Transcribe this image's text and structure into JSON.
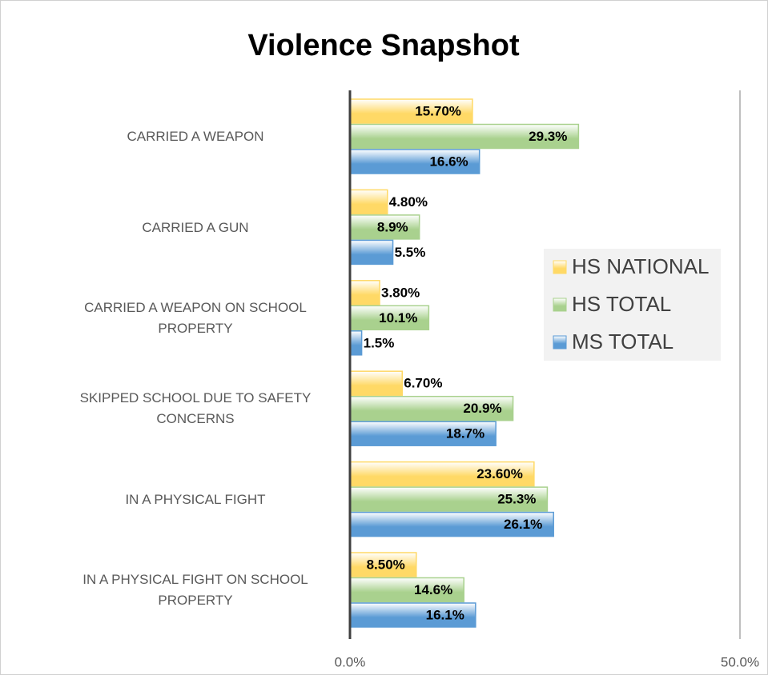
{
  "chart_data": {
    "type": "bar",
    "orientation": "horizontal",
    "title": "Violence Snapshot",
    "categories": [
      "CARRIED A WEAPON",
      "CARRIED A GUN",
      "CARRIED A WEAPON ON SCHOOL PROPERTY",
      "SKIPPED SCHOOL DUE TO SAFETY CONCERNS",
      "IN A PHYSICAL FIGHT",
      "IN A PHYSICAL FIGHT ON SCHOOL PROPERTY"
    ],
    "series": [
      {
        "name": "HS NATIONAL",
        "color": "#ffd966",
        "values": [
          15.7,
          4.8,
          3.8,
          6.7,
          23.6,
          8.5
        ],
        "value_labels": [
          "15.70%",
          "4.80%",
          "3.80%",
          "6.70%",
          "23.60%",
          "8.50%"
        ]
      },
      {
        "name": "HS TOTAL",
        "color": "#a9d18e",
        "values": [
          29.3,
          8.9,
          10.1,
          20.9,
          25.3,
          14.6
        ],
        "value_labels": [
          "29.3%",
          "8.9%",
          "10.1%",
          "20.9%",
          "25.3%",
          "14.6%"
        ]
      },
      {
        "name": "MS TOTAL",
        "color": "#5b9bd5",
        "values": [
          16.6,
          5.5,
          1.5,
          18.7,
          26.1,
          16.1
        ],
        "value_labels": [
          "16.6%",
          "5.5%",
          "1.5%",
          "18.7%",
          "26.1%",
          "16.1%"
        ]
      }
    ],
    "xlim": [
      0,
      50
    ],
    "xticks": [
      {
        "value": 0,
        "label": "0.0%"
      },
      {
        "value": 50,
        "label": "50.0%"
      }
    ],
    "legend": "right"
  }
}
